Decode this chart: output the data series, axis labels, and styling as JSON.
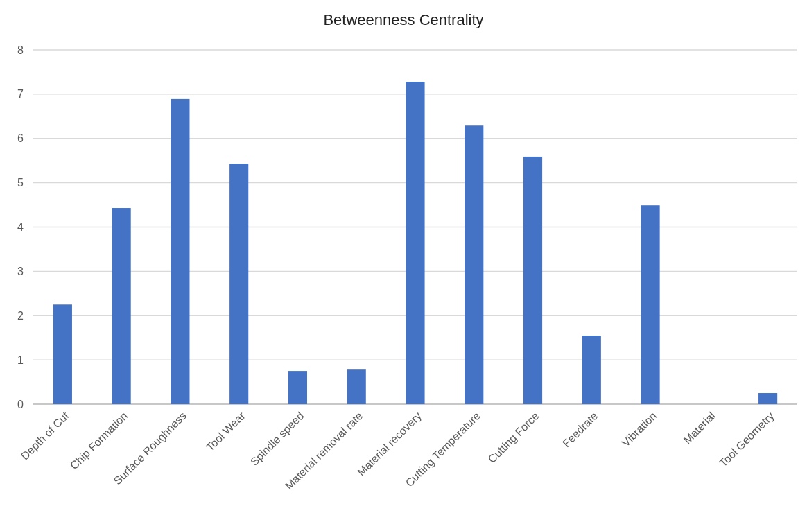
{
  "chart_data": {
    "type": "bar",
    "title": "Betweenness Centrality",
    "categories": [
      "Depth of Cut",
      "Chip Formation",
      "Surface Roughness",
      "Tool Wear",
      "Spindle speed",
      "Material removal rate",
      "Material recovery",
      "Cutting Temperature",
      "Cutting Force",
      "Feedrate",
      "Vibration",
      "Material",
      "Tool Geometry"
    ],
    "values": [
      2.25,
      4.43,
      6.89,
      5.43,
      0.75,
      0.78,
      7.28,
      6.29,
      5.59,
      1.55,
      4.49,
      0,
      0.25
    ],
    "color": "#4472c4",
    "ylim": [
      0,
      8
    ],
    "yticks": [
      0,
      1,
      2,
      3,
      4,
      5,
      6,
      7,
      8
    ],
    "grid": "y"
  }
}
